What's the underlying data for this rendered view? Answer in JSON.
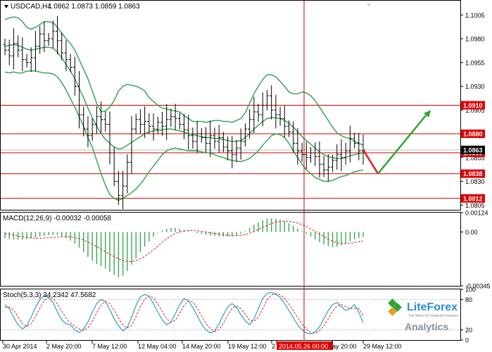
{
  "header": {
    "symbol": "USDCAD,H4",
    "ohlc": "1.0862 1.0873 1.0859 1.0863"
  },
  "colors": {
    "candle": "#000000",
    "band": "#3aa655",
    "level": "#cc0000",
    "level_label_bg": "#e00000",
    "price_label_bg": "#000000",
    "arrow_down": "#dd2222",
    "arrow_up": "#2fa52f",
    "macd_hist": "#3aa655",
    "macd_signal": "#dd2222",
    "stoch_main": "#2aa0c8",
    "stoch_signal": "#dd2222",
    "frame": "#000000"
  },
  "chart_data": [
    {
      "type": "candlestick",
      "panel": "price",
      "y_ticks": [
        "1.1005",
        "1.0980",
        "1.0955",
        "1.0930",
        "1.0905",
        "1.0855",
        "1.0830",
        "1.0805"
      ],
      "ylim": [
        1.08,
        1.102
      ],
      "levels": [
        {
          "value": 1.091,
          "label": "1.0910"
        },
        {
          "value": 1.088,
          "label": "1.0880"
        },
        {
          "value": 1.086,
          "label": "1.0860"
        },
        {
          "value": 1.0838,
          "label": "1.0838"
        },
        {
          "value": 1.0812,
          "label": "1.0812"
        }
      ],
      "current_price": {
        "value": 1.0863,
        "label": "1.0863"
      },
      "forecast": [
        {
          "price": 1.0863,
          "dir": "down"
        },
        {
          "price": 1.0838,
          "dir": "pivot"
        },
        {
          "price": 1.0905,
          "dir": "up"
        }
      ],
      "closes": [
        1.0968,
        1.0962,
        1.0975,
        1.0968,
        1.0958,
        1.0955,
        1.096,
        1.0972,
        1.0985,
        1.0978,
        1.098,
        1.0988,
        1.0978,
        1.0965,
        1.0958,
        1.095,
        1.093,
        1.09,
        1.0885,
        1.0878,
        1.089,
        1.0898,
        1.0895,
        1.089,
        1.086,
        1.083,
        1.0815,
        1.0825,
        1.085,
        1.0885,
        1.0895,
        1.089,
        1.0893,
        1.0888,
        1.0885,
        1.0892,
        1.0888,
        1.0895,
        1.0898,
        1.0896,
        1.089,
        1.0884,
        1.0878,
        1.0872,
        1.088,
        1.0876,
        1.087,
        1.0878,
        1.0872,
        1.0876,
        1.0866,
        1.0862,
        1.0858,
        1.0865,
        1.0872,
        1.0885,
        1.0895,
        1.0903,
        1.09,
        1.091,
        1.092,
        1.0905,
        1.09,
        1.0896,
        1.0888,
        1.0882,
        1.087,
        1.0862,
        1.0858,
        1.0855,
        1.086,
        1.0856,
        1.0848,
        1.0842,
        1.0845,
        1.0852,
        1.0858,
        1.0855,
        1.0862,
        1.0875,
        1.087,
        1.0862,
        1.0863
      ],
      "band_upper": [
        1.1,
        1.1002,
        1.1003,
        1.1002,
        1.0998,
        1.0992,
        1.099,
        1.0992,
        1.0995,
        1.0998,
        1.0998,
        1.0997,
        1.0992,
        1.0986,
        1.098,
        1.0975,
        1.0968,
        1.0958,
        1.0948,
        1.0938,
        1.0925,
        1.0912,
        1.0903,
        1.0904,
        1.0908,
        1.0915,
        1.0925,
        1.093,
        1.0932,
        1.0931,
        1.093,
        1.0928,
        1.0925,
        1.0918,
        1.0914,
        1.091,
        1.0907,
        1.0906,
        1.0905,
        1.0904,
        1.0903,
        1.0899,
        1.0896,
        1.0893,
        1.0893,
        1.0893,
        1.0892,
        1.0893,
        1.0894,
        1.0894,
        1.0893,
        1.0893,
        1.0892,
        1.0894,
        1.0896,
        1.0902,
        1.0912,
        1.0922,
        1.093,
        1.0937,
        1.0942,
        1.0942,
        1.094,
        1.0935,
        1.093,
        1.0924,
        1.0922,
        1.0922,
        1.0924,
        1.0923,
        1.092,
        1.0915,
        1.0908,
        1.0901,
        1.0894,
        1.0887,
        1.0881,
        1.0878,
        1.0876,
        1.0875,
        1.0872,
        1.087,
        1.0868
      ],
      "band_middle": [
        1.0972,
        1.0973,
        1.0974,
        1.0973,
        1.0971,
        1.0969,
        1.0968,
        1.0969,
        1.097,
        1.0971,
        1.0971,
        1.097,
        1.0966,
        1.096,
        1.0953,
        1.0946,
        1.0938,
        1.0928,
        1.0918,
        1.0907,
        1.0897,
        1.0888,
        1.088,
        1.0874,
        1.087,
        1.0866,
        1.0864,
        1.0865,
        1.0868,
        1.0871,
        1.0874,
        1.0877,
        1.088,
        1.0882,
        1.0883,
        1.0884,
        1.0884,
        1.0885,
        1.0885,
        1.0884,
        1.0883,
        1.0882,
        1.088,
        1.0879,
        1.0878,
        1.0877,
        1.0876,
        1.0876,
        1.0875,
        1.0875,
        1.0874,
        1.0873,
        1.0872,
        1.0872,
        1.0873,
        1.0876,
        1.088,
        1.0885,
        1.0889,
        1.0893,
        1.0896,
        1.0897,
        1.0897,
        1.0896,
        1.0894,
        1.0891,
        1.0887,
        1.0882,
        1.0877,
        1.0873,
        1.0869,
        1.0865,
        1.0861,
        1.0858,
        1.0856,
        1.0855,
        1.0854,
        1.0854,
        1.0855,
        1.0857,
        1.0858,
        1.0859,
        1.086
      ],
      "band_lower": [
        1.0945,
        1.0944,
        1.0945,
        1.0944,
        1.0944,
        1.0946,
        1.0946,
        1.0946,
        1.0945,
        1.0944,
        1.0944,
        1.0943,
        1.094,
        1.0934,
        1.0926,
        1.0917,
        1.0908,
        1.0898,
        1.0888,
        1.0876,
        1.0866,
        1.0852,
        1.0838,
        1.0826,
        1.0816,
        1.0812,
        1.081,
        1.0812,
        1.0815,
        1.0818,
        1.0822,
        1.0827,
        1.0833,
        1.084,
        1.0846,
        1.0852,
        1.0858,
        1.0862,
        1.0864,
        1.0865,
        1.0864,
        1.0863,
        1.0862,
        1.0862,
        1.0862,
        1.0861,
        1.086,
        1.086,
        1.0858,
        1.0856,
        1.0855,
        1.0853,
        1.0852,
        1.0851,
        1.0851,
        1.0852,
        1.0854,
        1.0858,
        1.0862,
        1.0868,
        1.0873,
        1.0878,
        1.088,
        1.0879,
        1.0876,
        1.087,
        1.0862,
        1.0855,
        1.0848,
        1.0842,
        1.0838,
        1.0834,
        1.0832,
        1.083,
        1.083,
        1.0831,
        1.0833,
        1.0835,
        1.0836,
        1.0838,
        1.084,
        1.0841,
        1.0842
      ]
    },
    {
      "type": "bar",
      "panel": "macd",
      "title": "MACD(12,26,9) -0.00032 -0.00058",
      "y_ticks": [
        "0.00124",
        "0.00",
        "-0.00345"
      ],
      "ylim": [
        -0.00345,
        0.00124
      ],
      "histogram": [
        -0.0004,
        -0.00045,
        -0.00048,
        -0.0005,
        -0.00049,
        -0.00046,
        -0.00042,
        -0.00036,
        -0.0003,
        -0.00025,
        -0.0002,
        -0.00018,
        -0.0002,
        -0.00028,
        -0.0004,
        -0.00055,
        -0.00075,
        -0.001,
        -0.0013,
        -0.0016,
        -0.00185,
        -0.00205,
        -0.0022,
        -0.00235,
        -0.00255,
        -0.00275,
        -0.0029,
        -0.0028,
        -0.0025,
        -0.0021,
        -0.0017,
        -0.0013,
        -0.00095,
        -0.0006,
        -0.0003,
        -5e-05,
        0.0001,
        0.0002,
        0.00025,
        0.00025,
        0.0002,
        0.00012,
        5e-05,
        -2e-05,
        -8e-05,
        -0.00012,
        -0.00018,
        -0.00022,
        -0.00025,
        -0.00028,
        -0.0003,
        -0.0003,
        -0.00028,
        -0.00022,
        -0.00012,
        5e-05,
        0.00025,
        0.00045,
        0.0006,
        0.00075,
        0.00085,
        0.00088,
        0.00085,
        0.00078,
        0.00068,
        0.00055,
        0.0004,
        0.00022,
        5e-05,
        -0.00012,
        -0.0003,
        -0.00048,
        -0.00065,
        -0.0008,
        -0.00092,
        -0.00098,
        -0.00095,
        -0.00085,
        -0.00072,
        -0.0006,
        -0.00048,
        -0.00038,
        -0.00032
      ],
      "signal": [
        -0.0001,
        -0.00015,
        -0.0002,
        -0.00026,
        -0.00031,
        -0.00035,
        -0.00038,
        -0.0004,
        -0.0004,
        -0.00039,
        -0.00037,
        -0.00035,
        -0.00032,
        -0.0003,
        -0.0003,
        -0.00032,
        -0.00036,
        -0.00042,
        -0.00052,
        -0.00064,
        -0.00078,
        -0.00094,
        -0.0011,
        -0.00126,
        -0.00142,
        -0.00158,
        -0.00172,
        -0.00184,
        -0.0019,
        -0.0019,
        -0.00184,
        -0.00172,
        -0.00156,
        -0.00136,
        -0.00114,
        -0.0009,
        -0.00066,
        -0.00044,
        -0.00025,
        -0.0001,
        0.0,
        6e-05,
        9e-05,
        9e-05,
        7e-05,
        4e-05,
        0.0,
        -5e-05,
        -0.0001,
        -0.00014,
        -0.00018,
        -0.00021,
        -0.00023,
        -0.00024,
        -0.00022,
        -0.00017,
        -8e-05,
        4e-05,
        0.00016,
        0.0003,
        0.00043,
        0.00054,
        0.00062,
        0.00067,
        0.00069,
        0.00068,
        0.00064,
        0.00057,
        0.00047,
        0.00035,
        0.0002,
        4e-05,
        -0.00013,
        -0.0003,
        -0.00046,
        -0.00059,
        -0.00069,
        -0.00074,
        -0.00075,
        -0.00073,
        -0.00068,
        -0.00062,
        -0.00058
      ]
    },
    {
      "type": "line",
      "panel": "stochastic",
      "title": "Stoch(5,3,3) 34.2342 47.5682",
      "y_ticks": [
        "100",
        "80",
        "20",
        "0"
      ],
      "ylim": [
        0,
        100
      ],
      "main": [
        70,
        62,
        45,
        30,
        22,
        28,
        45,
        65,
        80,
        88,
        84,
        74,
        56,
        40,
        32,
        30,
        20,
        15,
        22,
        35,
        55,
        72,
        80,
        76,
        60,
        42,
        28,
        18,
        25,
        45,
        68,
        85,
        90,
        86,
        72,
        55,
        40,
        30,
        36,
        52,
        70,
        82,
        78,
        64,
        48,
        32,
        20,
        14,
        18,
        32,
        50,
        66,
        72,
        64,
        50,
        38,
        30,
        42,
        62,
        82,
        92,
        94,
        90,
        84,
        72,
        58,
        44,
        30,
        20,
        14,
        12,
        16,
        26,
        42,
        58,
        70,
        74,
        66,
        58,
        62,
        70,
        55,
        34
      ],
      "signal": [
        64,
        65,
        59,
        46,
        32,
        27,
        32,
        46,
        63,
        78,
        84,
        82,
        71,
        57,
        43,
        34,
        27,
        22,
        19,
        24,
        37,
        54,
        69,
        76,
        72,
        59,
        43,
        29,
        24,
        29,
        46,
        66,
        81,
        87,
        83,
        71,
        56,
        42,
        35,
        39,
        53,
        68,
        77,
        75,
        63,
        48,
        33,
        22,
        17,
        21,
        33,
        49,
        63,
        67,
        62,
        51,
        39,
        37,
        45,
        62,
        79,
        89,
        92,
        89,
        82,
        71,
        58,
        44,
        31,
        21,
        15,
        14,
        18,
        28,
        42,
        57,
        67,
        70,
        66,
        62,
        63,
        62,
        48
      ]
    }
  ],
  "x_labels": [
    "30 Apr 2014",
    "2 May 20:00",
    "7 May 12:00",
    "12 May 04:00",
    "14 May 20:00",
    "19 May 12:00",
    "2",
    "2014.05.26 00:00",
    "ay 20:00",
    "29 May 12:00"
  ],
  "watermark": {
    "brand": "LiteForex",
    "tagline": "The World of Financial Freedom",
    "product": "Analytics"
  }
}
